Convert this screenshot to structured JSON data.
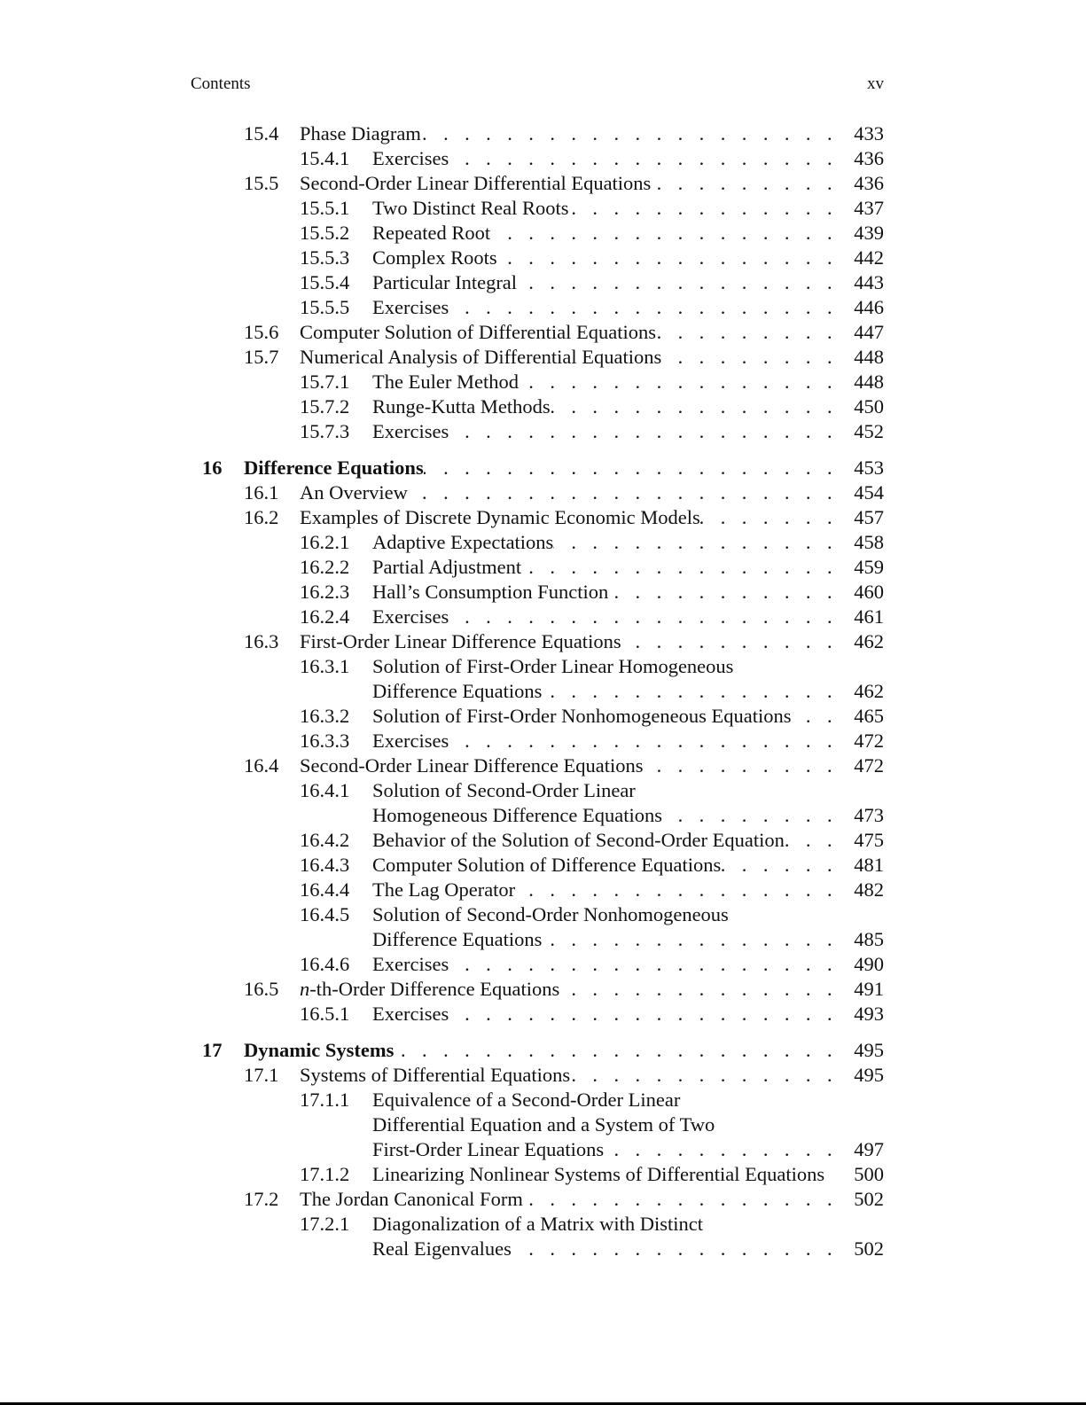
{
  "header": {
    "left": "Contents",
    "right": "xv"
  },
  "entries": [
    {
      "level": 1,
      "num": "15.4",
      "lines": [
        "Phase Diagram"
      ],
      "page": "433"
    },
    {
      "level": 2,
      "num": "15.4.1",
      "lines": [
        "Exercises"
      ],
      "page": "436"
    },
    {
      "level": 1,
      "num": "15.5",
      "lines": [
        "Second-Order Linear Differential Equations"
      ],
      "page": "436"
    },
    {
      "level": 2,
      "num": "15.5.1",
      "lines": [
        "Two Distinct Real Roots"
      ],
      "page": "437"
    },
    {
      "level": 2,
      "num": "15.5.2",
      "lines": [
        "Repeated Root"
      ],
      "page": "439"
    },
    {
      "level": 2,
      "num": "15.5.3",
      "lines": [
        "Complex Roots"
      ],
      "page": "442"
    },
    {
      "level": 2,
      "num": "15.5.4",
      "lines": [
        "Particular Integral"
      ],
      "page": "443"
    },
    {
      "level": 2,
      "num": "15.5.5",
      "lines": [
        "Exercises"
      ],
      "page": "446"
    },
    {
      "level": 1,
      "num": "15.6",
      "lines": [
        "Computer Solution of Differential Equations"
      ],
      "page": "447"
    },
    {
      "level": 1,
      "num": "15.7",
      "lines": [
        "Numerical Analysis of Differential Equations"
      ],
      "page": "448"
    },
    {
      "level": 2,
      "num": "15.7.1",
      "lines": [
        "The Euler Method"
      ],
      "page": "448"
    },
    {
      "level": 2,
      "num": "15.7.2",
      "lines": [
        "Runge-Kutta Methods"
      ],
      "page": "450"
    },
    {
      "level": 2,
      "num": "15.7.3",
      "lines": [
        "Exercises"
      ],
      "page": "452"
    },
    {
      "level": 0,
      "num": "16",
      "lines": [
        "Difference Equations"
      ],
      "page": "453"
    },
    {
      "level": 1,
      "num": "16.1",
      "lines": [
        "An Overview"
      ],
      "page": "454"
    },
    {
      "level": 1,
      "num": "16.2",
      "lines": [
        "Examples of Discrete Dynamic Economic Models"
      ],
      "page": "457"
    },
    {
      "level": 2,
      "num": "16.2.1",
      "lines": [
        "Adaptive Expectations"
      ],
      "page": "458"
    },
    {
      "level": 2,
      "num": "16.2.2",
      "lines": [
        "Partial Adjustment"
      ],
      "page": "459"
    },
    {
      "level": 2,
      "num": "16.2.3",
      "lines": [
        "Hall’s Consumption Function"
      ],
      "page": "460"
    },
    {
      "level": 2,
      "num": "16.2.4",
      "lines": [
        "Exercises"
      ],
      "page": "461"
    },
    {
      "level": 1,
      "num": "16.3",
      "lines": [
        "First-Order Linear Difference Equations"
      ],
      "page": "462"
    },
    {
      "level": 2,
      "num": "16.3.1",
      "lines": [
        "Solution of First-Order Linear Homogeneous",
        "Difference Equations"
      ],
      "page": "462"
    },
    {
      "level": 2,
      "num": "16.3.2",
      "lines": [
        "Solution of First-Order Nonhomogeneous Equations"
      ],
      "page": "465"
    },
    {
      "level": 2,
      "num": "16.3.3",
      "lines": [
        "Exercises"
      ],
      "page": "472"
    },
    {
      "level": 1,
      "num": "16.4",
      "lines": [
        "Second-Order Linear Difference Equations"
      ],
      "page": "472"
    },
    {
      "level": 2,
      "num": "16.4.1",
      "lines": [
        "Solution of Second-Order Linear",
        "Homogeneous Difference Equations"
      ],
      "page": "473"
    },
    {
      "level": 2,
      "num": "16.4.2",
      "lines": [
        "Behavior of the Solution of Second-Order Equation"
      ],
      "page": "475"
    },
    {
      "level": 2,
      "num": "16.4.3",
      "lines": [
        "Computer Solution of Difference Equations"
      ],
      "page": "481"
    },
    {
      "level": 2,
      "num": "16.4.4",
      "lines": [
        "The Lag Operator"
      ],
      "page": "482"
    },
    {
      "level": 2,
      "num": "16.4.5",
      "lines": [
        "Solution of Second-Order Nonhomogeneous",
        "Difference Equations"
      ],
      "page": "485"
    },
    {
      "level": 2,
      "num": "16.4.6",
      "lines": [
        "Exercises"
      ],
      "page": "490"
    },
    {
      "level": 1,
      "num": "16.5",
      "em": "n",
      "lines": [
        "-th-Order Difference Equations"
      ],
      "page": "491"
    },
    {
      "level": 2,
      "num": "16.5.1",
      "lines": [
        "Exercises"
      ],
      "page": "493"
    },
    {
      "level": 0,
      "num": "17",
      "lines": [
        "Dynamic Systems"
      ],
      "page": "495"
    },
    {
      "level": 1,
      "num": "17.1",
      "lines": [
        "Systems of Differential Equations"
      ],
      "page": "495"
    },
    {
      "level": 2,
      "num": "17.1.1",
      "lines": [
        "Equivalence of a Second-Order Linear",
        "Differential Equation and a System of Two",
        "First-Order Linear Equations"
      ],
      "page": "497"
    },
    {
      "level": 2,
      "num": "17.1.2",
      "lines": [
        "Linearizing Nonlinear Systems of Differential Equations"
      ],
      "page": "500",
      "noleader": true
    },
    {
      "level": 1,
      "num": "17.2",
      "lines": [
        "The Jordan Canonical Form"
      ],
      "page": "502"
    },
    {
      "level": 2,
      "num": "17.2.1",
      "lines": [
        "Diagonalization of a Matrix with Distinct",
        "Real Eigenvalues"
      ],
      "page": "502"
    }
  ]
}
